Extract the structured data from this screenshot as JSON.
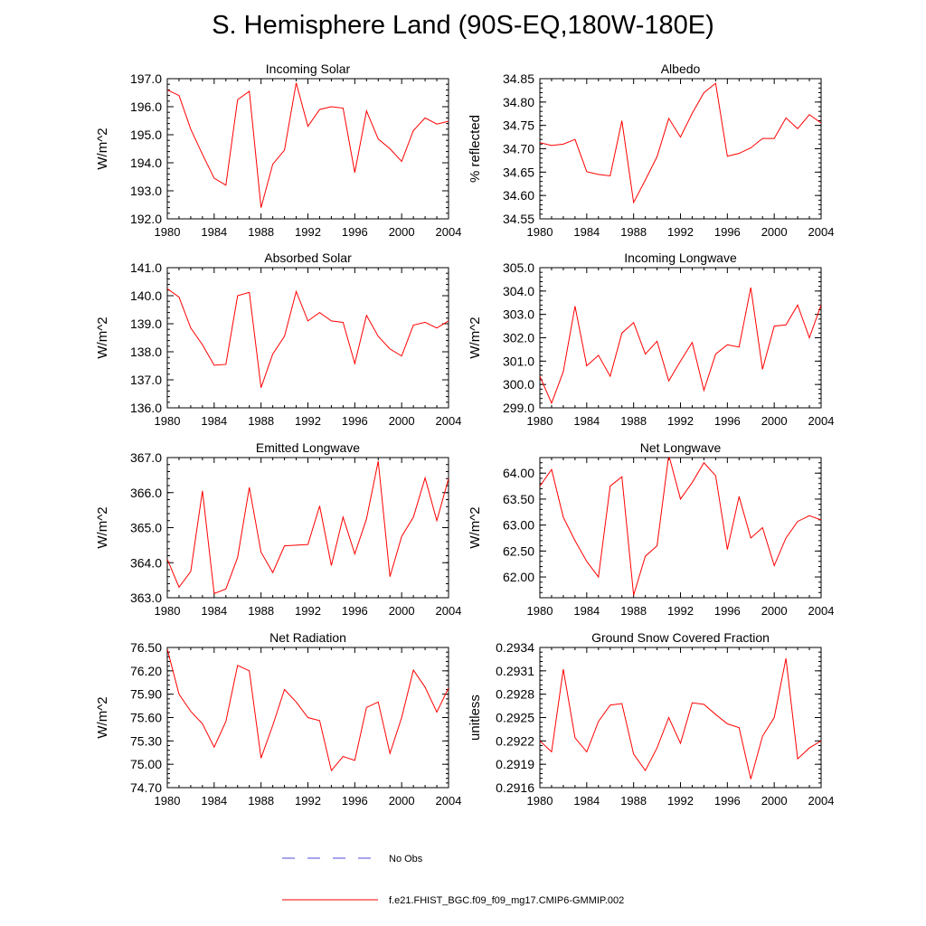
{
  "title": "S. Hemisphere Land (90S-EQ,180W-180E)",
  "colors": {
    "model": "#ff0000",
    "obs": "#4a4ad8",
    "axis": "#000000",
    "background": "#ffffff"
  },
  "legend": {
    "obs_label": "No Obs",
    "model_label": "f.e21.FHIST_BGC.f09_f09_mg17.CMIP6-GMMIP.002"
  },
  "chart_data": [
    {
      "type": "line",
      "title": "Incoming Solar",
      "ylabel": "W/m^2",
      "xlim": [
        1980,
        2004
      ],
      "xticks": [
        "1980",
        "1984",
        "1988",
        "1992",
        "1996",
        "2000",
        "2004"
      ],
      "ylim": [
        192.0,
        197.0
      ],
      "yticks": [
        "192.0",
        "193.0",
        "194.0",
        "195.0",
        "196.0",
        "197.0"
      ],
      "series": [
        {
          "name": "f.e21.FHIST_BGC.f09_f09_mg17.CMIP6-GMMIP.002",
          "x": [
            1980,
            1981,
            1982,
            1983,
            1984,
            1985,
            1986,
            1987,
            1988,
            1989,
            1990,
            1991,
            1992,
            1993,
            1994,
            1995,
            1996,
            1997,
            1998,
            1999,
            2000,
            2001,
            2002,
            2003,
            2004
          ],
          "values": [
            196.6,
            196.4,
            195.2,
            194.3,
            193.45,
            193.2,
            196.25,
            196.55,
            192.4,
            193.95,
            194.45,
            196.85,
            195.3,
            195.9,
            196.0,
            195.95,
            193.65,
            195.85,
            194.85,
            194.5,
            194.05,
            195.15,
            195.6,
            195.38,
            195.48
          ]
        }
      ]
    },
    {
      "type": "line",
      "title": "Albedo",
      "ylabel": "% reflected",
      "xlim": [
        1980,
        2004
      ],
      "xticks": [
        "1980",
        "1984",
        "1988",
        "1992",
        "1996",
        "2000",
        "2004"
      ],
      "ylim": [
        34.55,
        34.85
      ],
      "yticks": [
        "34.55",
        "34.60",
        "34.65",
        "34.70",
        "34.75",
        "34.80",
        "34.85"
      ],
      "series": [
        {
          "name": "f.e21.FHIST_BGC.f09_f09_mg17.CMIP6-GMMIP.002",
          "x": [
            1980,
            1981,
            1982,
            1983,
            1984,
            1985,
            1986,
            1987,
            1988,
            1989,
            1990,
            1991,
            1992,
            1993,
            1994,
            1995,
            1996,
            1997,
            1998,
            1999,
            2000,
            2001,
            2002,
            2003,
            2004
          ],
          "values": [
            34.713,
            34.707,
            34.71,
            34.72,
            34.651,
            34.645,
            34.642,
            34.76,
            34.585,
            34.633,
            34.683,
            34.765,
            34.725,
            34.776,
            34.82,
            34.84,
            34.684,
            34.69,
            34.702,
            34.722,
            34.722,
            34.766,
            34.743,
            34.773,
            34.755
          ]
        }
      ]
    },
    {
      "type": "line",
      "title": "Absorbed Solar",
      "ylabel": "W/m^2",
      "xlim": [
        1980,
        2004
      ],
      "xticks": [
        "1980",
        "1984",
        "1988",
        "1992",
        "1996",
        "2000",
        "2004"
      ],
      "ylim": [
        136.0,
        141.0
      ],
      "yticks": [
        "136.0",
        "137.0",
        "138.0",
        "139.0",
        "140.0",
        "141.0"
      ],
      "series": [
        {
          "name": "f.e21.FHIST_BGC.f09_f09_mg17.CMIP6-GMMIP.002",
          "x": [
            1980,
            1981,
            1982,
            1983,
            1984,
            1985,
            1986,
            1987,
            1988,
            1989,
            1990,
            1991,
            1992,
            1993,
            1994,
            1995,
            1996,
            1997,
            1998,
            1999,
            2000,
            2001,
            2002,
            2003,
            2004
          ],
          "values": [
            140.25,
            139.95,
            138.85,
            138.25,
            137.52,
            137.55,
            140.0,
            140.12,
            136.72,
            137.92,
            138.55,
            140.15,
            139.1,
            139.4,
            139.1,
            139.05,
            137.58,
            139.3,
            138.55,
            138.1,
            137.85,
            138.95,
            139.05,
            138.85,
            139.1
          ]
        }
      ]
    },
    {
      "type": "line",
      "title": "Incoming Longwave",
      "ylabel": "W/m^2",
      "xlim": [
        1980,
        2004
      ],
      "xticks": [
        "1980",
        "1984",
        "1988",
        "1992",
        "1996",
        "2000",
        "2004"
      ],
      "ylim": [
        299.0,
        305.0
      ],
      "yticks": [
        "299.0",
        "300.0",
        "301.0",
        "302.0",
        "303.0",
        "304.0",
        "305.0"
      ],
      "series": [
        {
          "name": "f.e21.FHIST_BGC.f09_f09_mg17.CMIP6-GMMIP.002",
          "x": [
            1980,
            1981,
            1982,
            1983,
            1984,
            1985,
            1986,
            1987,
            1988,
            1989,
            1990,
            1991,
            1992,
            1993,
            1994,
            1995,
            1996,
            1997,
            1998,
            1999,
            2000,
            2001,
            2002,
            2003,
            2004
          ],
          "values": [
            300.35,
            299.2,
            300.55,
            303.35,
            300.8,
            301.25,
            300.35,
            302.2,
            302.65,
            301.3,
            301.85,
            300.15,
            301.0,
            301.8,
            299.75,
            301.3,
            301.7,
            301.6,
            304.15,
            300.65,
            302.5,
            302.55,
            303.4,
            302.0,
            303.4
          ]
        }
      ]
    },
    {
      "type": "line",
      "title": "Emitted Longwave",
      "ylabel": "W/m^2",
      "xlim": [
        1980,
        2004
      ],
      "xticks": [
        "1980",
        "1984",
        "1988",
        "1992",
        "1996",
        "2000",
        "2004"
      ],
      "ylim": [
        363.0,
        367.0
      ],
      "yticks": [
        "363.0",
        "364.0",
        "365.0",
        "366.0",
        "367.0"
      ],
      "series": [
        {
          "name": "f.e21.FHIST_BGC.f09_f09_mg17.CMIP6-GMMIP.002",
          "x": [
            1980,
            1981,
            1982,
            1983,
            1984,
            1985,
            1986,
            1987,
            1988,
            1989,
            1990,
            1991,
            1992,
            1993,
            1994,
            1995,
            1996,
            1997,
            1998,
            1999,
            2000,
            2001,
            2002,
            2003,
            2004
          ],
          "values": [
            364.1,
            363.3,
            363.75,
            366.05,
            363.12,
            363.25,
            364.15,
            366.15,
            364.3,
            363.72,
            364.48,
            364.5,
            364.52,
            365.62,
            363.92,
            365.3,
            364.25,
            365.25,
            366.9,
            363.6,
            364.75,
            365.3,
            366.42,
            365.2,
            366.4
          ]
        }
      ]
    },
    {
      "type": "line",
      "title": "Net Longwave",
      "ylabel": "W/m^2",
      "xlim": [
        1980,
        2004
      ],
      "xticks": [
        "1980",
        "1984",
        "1988",
        "1992",
        "1996",
        "2000",
        "2004"
      ],
      "ylim": [
        61.6,
        64.3
      ],
      "yticks": [
        "62.00",
        "62.50",
        "63.00",
        "63.50",
        "64.00"
      ],
      "series": [
        {
          "name": "f.e21.FHIST_BGC.f09_f09_mg17.CMIP6-GMMIP.002",
          "x": [
            1980,
            1981,
            1982,
            1983,
            1984,
            1985,
            1986,
            1987,
            1988,
            1989,
            1990,
            1991,
            1992,
            1993,
            1994,
            1995,
            1996,
            1997,
            1998,
            1999,
            2000,
            2001,
            2002,
            2003,
            2004
          ],
          "values": [
            63.75,
            64.07,
            63.15,
            62.7,
            62.3,
            62.0,
            63.75,
            63.93,
            61.65,
            62.4,
            62.6,
            64.35,
            63.5,
            63.82,
            64.2,
            63.95,
            62.53,
            63.55,
            62.75,
            62.95,
            62.22,
            62.75,
            63.07,
            63.18,
            63.1
          ]
        }
      ]
    },
    {
      "type": "line",
      "title": "Net Radiation",
      "ylabel": "W/m^2",
      "xlim": [
        1980,
        2004
      ],
      "xticks": [
        "1980",
        "1984",
        "1988",
        "1992",
        "1996",
        "2000",
        "2004"
      ],
      "ylim": [
        74.7,
        76.5
      ],
      "yticks": [
        "74.70",
        "75.00",
        "75.30",
        "75.60",
        "75.90",
        "76.20",
        "76.50"
      ],
      "series": [
        {
          "name": "f.e21.FHIST_BGC.f09_f09_mg17.CMIP6-GMMIP.002",
          "x": [
            1980,
            1981,
            1982,
            1983,
            1984,
            1985,
            1986,
            1987,
            1988,
            1989,
            1990,
            1991,
            1992,
            1993,
            1994,
            1995,
            1996,
            1997,
            1998,
            1999,
            2000,
            2001,
            2002,
            2003,
            2004
          ],
          "values": [
            76.48,
            75.9,
            75.68,
            75.52,
            75.22,
            75.55,
            76.27,
            76.2,
            75.08,
            75.5,
            75.96,
            75.8,
            75.6,
            75.56,
            74.92,
            75.1,
            75.05,
            75.73,
            75.8,
            75.14,
            75.6,
            76.21,
            75.99,
            75.67,
            75.98
          ]
        }
      ]
    },
    {
      "type": "line",
      "title": "Ground Snow Covered Fraction",
      "ylabel": "unitless",
      "xlim": [
        1980,
        2004
      ],
      "xticks": [
        "1980",
        "1984",
        "1988",
        "1992",
        "1996",
        "2000",
        "2004"
      ],
      "ylim": [
        0.2916,
        0.2934
      ],
      "yticks": [
        "0.2916",
        "0.2919",
        "0.2922",
        "0.2925",
        "0.2928",
        "0.2931",
        "0.2934"
      ],
      "series": [
        {
          "name": "f.e21.FHIST_BGC.f09_f09_mg17.CMIP6-GMMIP.002",
          "x": [
            1980,
            1981,
            1982,
            1983,
            1984,
            1985,
            1986,
            1987,
            1988,
            1989,
            1990,
            1991,
            1992,
            1993,
            1994,
            1995,
            1996,
            1997,
            1998,
            1999,
            2000,
            2001,
            2002,
            2003,
            2004
          ],
          "values": [
            0.2922,
            0.29206,
            0.29312,
            0.29224,
            0.29206,
            0.29245,
            0.29266,
            0.29268,
            0.29203,
            0.29182,
            0.29211,
            0.2925,
            0.29217,
            0.29269,
            0.29267,
            0.29254,
            0.29242,
            0.29237,
            0.29171,
            0.29226,
            0.2925,
            0.29326,
            0.29197,
            0.29211,
            0.2922
          ]
        }
      ]
    }
  ]
}
